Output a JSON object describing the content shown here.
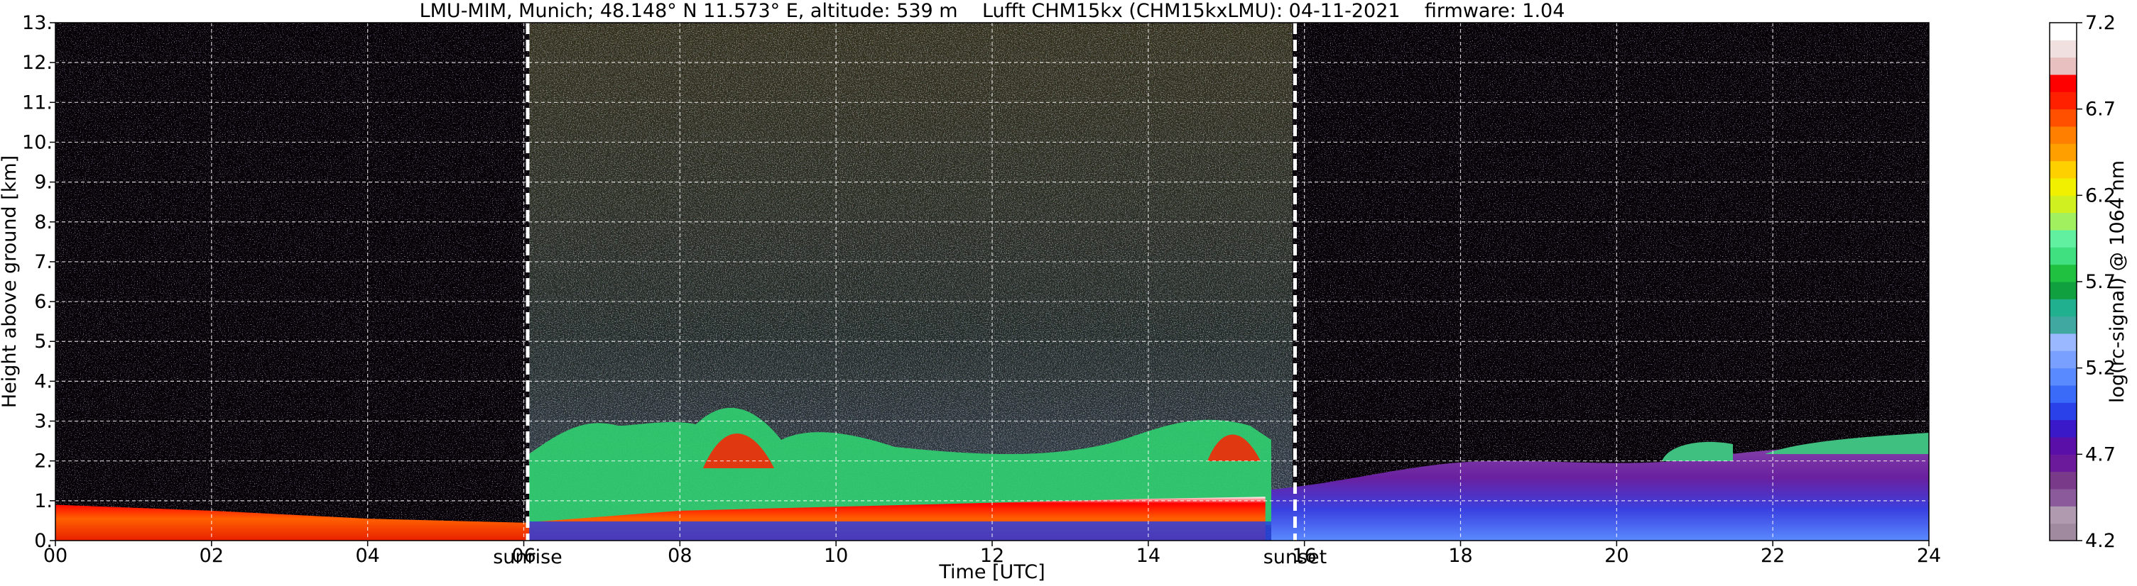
{
  "chart_data": {
    "type": "heatmap",
    "title": "LMU-MIM, Munich; 48.148° N 11.573° E, altitude: 539 m    Lufft CHM15kx (CHM15kxLMU): 04-11-2021    firmware: 1.04",
    "xlabel": "Time [UTC]",
    "ylabel": "Height above ground [km]",
    "colorbar_label": "log(rc-signal) @ 1064 nm",
    "xlim": [
      0,
      24
    ],
    "ylim": [
      0,
      13
    ],
    "x_ticks": [
      0,
      2,
      4,
      6,
      8,
      10,
      12,
      14,
      16,
      18,
      20,
      22,
      24
    ],
    "x_tick_labels": [
      "00",
      "02",
      "04",
      "06",
      "08",
      "10",
      "12",
      "14",
      "16",
      "18",
      "20",
      "22",
      "24"
    ],
    "y_ticks": [
      0,
      1,
      2,
      3,
      4,
      5,
      6,
      7,
      8,
      9,
      10,
      11,
      12,
      13
    ],
    "y_tick_labels": [
      "0.",
      "1.",
      "2.",
      "3.",
      "4.",
      "5.",
      "6.",
      "7.",
      "8.",
      "9.",
      "10.",
      "11.",
      "12.",
      "13."
    ],
    "grid": true,
    "colorbar_range": [
      4.2,
      7.2
    ],
    "colorbar_ticks": [
      4.2,
      4.7,
      5.2,
      5.7,
      6.2,
      6.7,
      7.2
    ],
    "colorbar_tick_labels": [
      "4.2",
      "4.7",
      "5.2",
      "5.7",
      "6.2",
      "6.7",
      "7.2"
    ],
    "colorbar_colors": [
      "#a08aa0",
      "#b09ab0",
      "#8a5a9a",
      "#7a3a8a",
      "#6a1a9a",
      "#5a10a8",
      "#3a1ac8",
      "#2a40e8",
      "#3a6af8",
      "#5a8aff",
      "#7aa0ff",
      "#9ab8ff",
      "#40a8a0",
      "#20b090",
      "#10a040",
      "#20c040",
      "#40e080",
      "#60f0a0",
      "#a0f060",
      "#d0f020",
      "#f0f000",
      "#ffd000",
      "#ffa000",
      "#ff8000",
      "#ff5000",
      "#ff2000",
      "#ff0000",
      "#e8c0c0",
      "#f0e0e0",
      "#ffffff"
    ],
    "markers": [
      {
        "label": "sunrise",
        "x": 6.05
      },
      {
        "label": "sunset",
        "x": 15.88
      }
    ],
    "features": {
      "boundary_layer_top_km": [
        [
          0,
          0.9
        ],
        [
          2,
          0.75
        ],
        [
          4,
          0.55
        ],
        [
          6,
          0.45
        ],
        [
          8,
          0.75
        ],
        [
          10,
          0.85
        ],
        [
          12,
          0.95
        ],
        [
          14,
          1.05
        ],
        [
          15.5,
          1.1
        ]
      ],
      "nocturnal_layer_height_km": [
        [
          16,
          1.5
        ],
        [
          18,
          1.75
        ],
        [
          20,
          1.6
        ],
        [
          22,
          1.8
        ],
        [
          24,
          2.0
        ]
      ],
      "elevated_aerosol_layers": [
        {
          "x_range": [
            20.5,
            21.5
          ],
          "top_km": 2.5
        },
        {
          "x_range": [
            22.2,
            24
          ],
          "top_km": 2.65
        }
      ]
    }
  }
}
